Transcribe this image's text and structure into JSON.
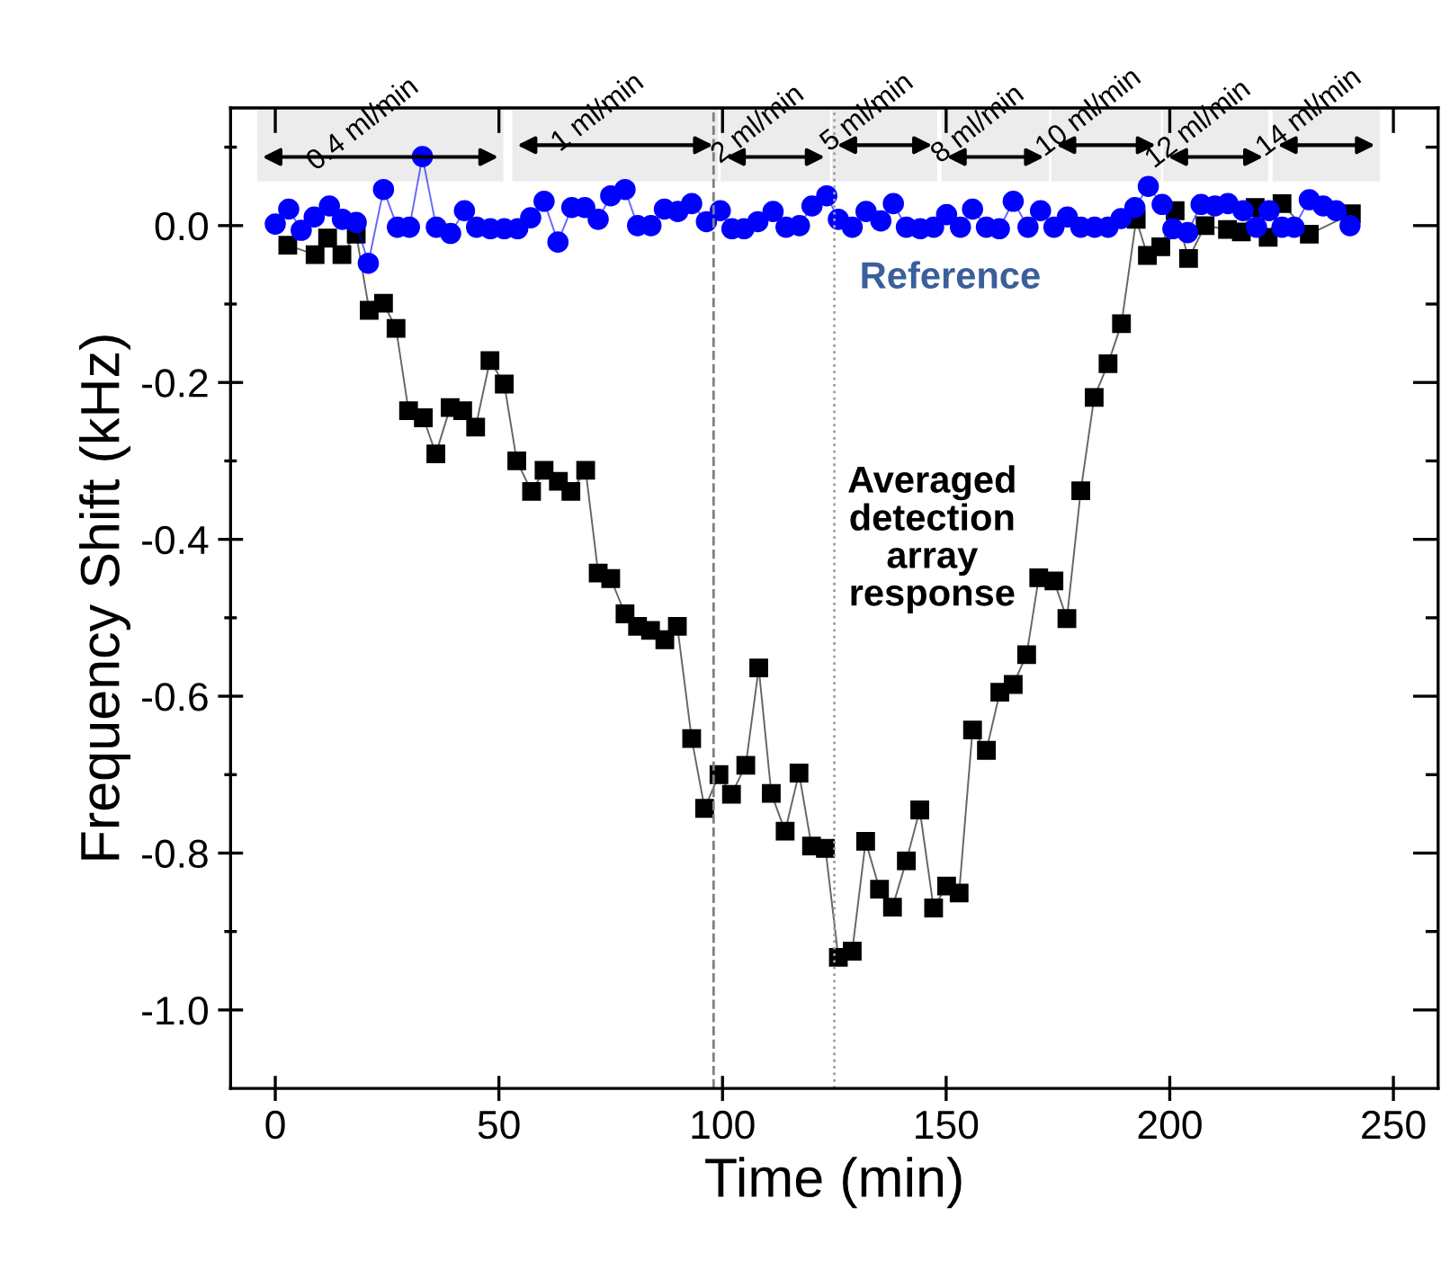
{
  "chart_data": {
    "type": "line",
    "xlabel": "Time (min)",
    "ylabel": "Frequency Shift (kHz)",
    "xlim": [
      -10,
      260
    ],
    "ylim": [
      -1.1,
      0.15
    ],
    "xticks": [
      0,
      50,
      100,
      150,
      200,
      250
    ],
    "yticks": [
      {
        "value": 0.1,
        "label": null
      },
      {
        "value": 0.0,
        "label": "0.0"
      },
      {
        "value": -0.1,
        "label": null
      },
      {
        "value": -0.2,
        "label": "-0.2"
      },
      {
        "value": -0.3,
        "label": null
      },
      {
        "value": -0.4,
        "label": "-0.4"
      },
      {
        "value": -0.5,
        "label": null
      },
      {
        "value": -0.6,
        "label": "-0.6"
      },
      {
        "value": -0.7,
        "label": null
      },
      {
        "value": -0.8,
        "label": "-0.8"
      },
      {
        "value": -0.9,
        "label": null
      },
      {
        "value": -1.0,
        "label": "-1.0"
      }
    ],
    "grid": false,
    "legend": false,
    "line_style": "solid",
    "series": [
      {
        "color": "#000000",
        "marker": "square",
        "x": [
          2.8,
          8.9,
          11.7,
          14.9,
          18.1,
          21,
          24.2,
          27,
          29.8,
          33.1,
          35.9,
          39.1,
          41.9,
          44.8,
          48,
          51.2,
          54,
          57.3,
          60.1,
          63.3,
          66.1,
          69.4,
          72.2,
          75,
          78.2,
          81,
          83.9,
          87.1,
          89.9,
          93.1,
          96,
          99.2,
          102,
          105.2,
          108.1,
          110.9,
          114,
          117.1,
          119.9,
          123,
          125.9,
          129,
          132,
          135.1,
          138,
          141.1,
          144.1,
          147.2,
          150.1,
          152.9,
          155.9,
          159,
          162,
          165,
          168,
          170.7,
          174.1,
          177,
          180.1,
          183.1,
          186.2,
          189.2,
          192.5,
          195,
          198,
          201.2,
          204.2,
          207.9,
          212.9,
          216,
          219.1,
          222,
          225.1,
          231.2,
          240.6
        ],
        "values": [
          -0.025,
          -0.037,
          -0.016,
          -0.037,
          -0.011,
          -0.108,
          -0.099,
          -0.131,
          -0.236,
          -0.245,
          -0.291,
          -0.232,
          -0.236,
          -0.257,
          -0.172,
          -0.202,
          -0.3,
          -0.339,
          -0.312,
          -0.326,
          -0.339,
          -0.312,
          -0.443,
          -0.45,
          -0.495,
          -0.511,
          -0.516,
          -0.528,
          -0.511,
          -0.654,
          -0.743,
          -0.7,
          -0.725,
          -0.688,
          -0.564,
          -0.724,
          -0.772,
          -0.698,
          -0.791,
          -0.794,
          -0.933,
          -0.925,
          -0.785,
          -0.846,
          -0.869,
          -0.81,
          -0.745,
          -0.87,
          -0.842,
          -0.851,
          -0.643,
          -0.669,
          -0.595,
          -0.585,
          -0.547,
          -0.449,
          -0.453,
          -0.501,
          -0.338,
          -0.219,
          -0.176,
          -0.125,
          0.008,
          -0.038,
          -0.027,
          0.019,
          -0.042,
          0.0,
          -0.005,
          -0.008,
          0.023,
          -0.015,
          0.028,
          -0.011,
          0.015
        ]
      },
      {
        "color": "#0000ff",
        "marker": "circle",
        "x": [
          0,
          3,
          5.8,
          8.7,
          12.1,
          15,
          18.1,
          20.8,
          24.2,
          27.3,
          30,
          32.9,
          36,
          39.2,
          42.3,
          45,
          48.1,
          51.2,
          54.2,
          57.1,
          60.1,
          63.2,
          66.3,
          69.2,
          72.2,
          75,
          78.2,
          81,
          84,
          87,
          90,
          93.1,
          96.4,
          99.5,
          102.1,
          104.8,
          107.9,
          111.3,
          114.2,
          117.2,
          120,
          123.3,
          125.9,
          129,
          132.1,
          135.4,
          138.2,
          141.1,
          144.2,
          147.2,
          150.1,
          153.2,
          155.9,
          159,
          161.9,
          165,
          168.3,
          171.1,
          174.1,
          177.1,
          180.1,
          183.2,
          186.2,
          189.1,
          192.2,
          195.2,
          198.3,
          200.7,
          204,
          207,
          210.1,
          213,
          216.4,
          219.4,
          222.2,
          225.1,
          227.8,
          231.2,
          234.3,
          237.2,
          240.3
        ],
        "values": [
          0.002,
          0.021,
          -0.006,
          0.011,
          0.025,
          0.008,
          0.004,
          -0.048,
          0.046,
          -0.002,
          -0.002,
          0.088,
          -0.002,
          -0.01,
          0.019,
          -0.002,
          -0.004,
          -0.004,
          -0.004,
          0.01,
          0.031,
          -0.021,
          0.023,
          0.023,
          0.008,
          0.038,
          0.046,
          0.0,
          0.0,
          0.021,
          0.018,
          0.028,
          0.005,
          0.019,
          -0.004,
          -0.004,
          0.005,
          0.018,
          -0.002,
          0.0,
          0.025,
          0.038,
          0.008,
          -0.002,
          0.018,
          0.006,
          0.028,
          -0.002,
          -0.004,
          -0.002,
          0.014,
          -0.002,
          0.021,
          -0.002,
          -0.004,
          0.031,
          -0.002,
          0.019,
          -0.002,
          0.011,
          -0.002,
          -0.002,
          -0.002,
          0.009,
          0.023,
          0.05,
          0.027,
          -0.004,
          -0.009,
          0.027,
          0.025,
          0.028,
          0.019,
          -0.002,
          0.019,
          -0.002,
          -0.002,
          0.033,
          0.025,
          0.019,
          0.0
        ]
      }
    ],
    "ref_lines": [
      {
        "axis": "x",
        "value": 98,
        "color": "#808080",
        "line_style": "dashed"
      },
      {
        "axis": "x",
        "value": 125,
        "color": "#a0a0a0",
        "line_style": "dotted"
      }
    ],
    "bands": [
      {
        "axis": "x",
        "from": -4,
        "to": 51,
        "label": "0.4 ml/min"
      },
      {
        "axis": "x",
        "from": 53,
        "to": 99,
        "label": "1 ml/min"
      },
      {
        "axis": "x",
        "from": 99.6,
        "to": 124,
        "label": "2 ml/min"
      },
      {
        "axis": "x",
        "from": 124.5,
        "to": 148,
        "label": "5 ml/min"
      },
      {
        "axis": "x",
        "from": 149,
        "to": 173,
        "label": "8 ml/min"
      },
      {
        "axis": "x",
        "from": 173.5,
        "to": 198,
        "label": "10 ml/min"
      },
      {
        "axis": "x",
        "from": 198.5,
        "to": 222,
        "label": "12 ml/min"
      },
      {
        "axis": "x",
        "from": 223,
        "to": 247,
        "label": "14 ml/min"
      }
    ],
    "annotations": [
      "Reference",
      "Averaged\ndetection\narray\nresponse"
    ]
  }
}
